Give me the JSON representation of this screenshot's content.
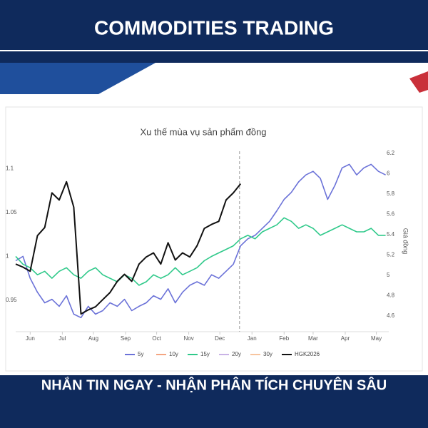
{
  "header": {
    "title": "COMMODITIES TRADING"
  },
  "footer": {
    "text": "NHẮN TIN NGAY - NHẬN PHÂN TÍCH CHUYÊN SÂU"
  },
  "chart_data": {
    "type": "line",
    "title": "Xu thế mùa vụ sản phẩm đồng",
    "y2_label": "Giá đồng",
    "x": [
      0,
      7,
      14,
      21,
      28,
      35,
      42,
      49,
      56,
      63,
      70,
      77,
      84,
      91,
      98,
      105,
      112,
      119,
      126,
      133,
      140,
      147,
      154,
      161,
      168,
      175,
      182,
      189,
      196,
      203,
      210,
      217,
      224,
      231,
      238,
      245,
      252,
      259,
      266,
      273,
      280,
      287,
      294,
      301,
      308,
      315,
      322,
      329,
      336,
      343,
      350,
      357
    ],
    "xlim": [
      0,
      360
    ],
    "xticks": [
      {
        "value": 14,
        "label": "Jun"
      },
      {
        "value": 45,
        "label": "Jul"
      },
      {
        "value": 75,
        "label": "Aug"
      },
      {
        "value": 106,
        "label": "Sep"
      },
      {
        "value": 136,
        "label": "Oct"
      },
      {
        "value": 167,
        "label": "Nov"
      },
      {
        "value": 197,
        "label": "Dec"
      },
      {
        "value": 228,
        "label": "Jan"
      },
      {
        "value": 259,
        "label": "Feb"
      },
      {
        "value": 287,
        "label": "Mar"
      },
      {
        "value": 318,
        "label": "Apr"
      },
      {
        "value": 348,
        "label": "May"
      }
    ],
    "ylim": [
      0.914,
      1.12
    ],
    "yticks": [
      0.95,
      1,
      1.05,
      1.1
    ],
    "y2lim": [
      4.445,
      6.22
    ],
    "y2ticks": [
      4.6,
      4.8,
      5,
      5.2,
      5.4,
      5.6,
      5.8,
      6,
      6.2
    ],
    "divider_x": 216,
    "series": [
      {
        "name": "5y",
        "color": "#6b72d8",
        "values": [
          0.995,
          1.0,
          0.975,
          0.959,
          0.947,
          0.951,
          0.943,
          0.955,
          0.934,
          0.93,
          0.943,
          0.934,
          0.938,
          0.947,
          0.943,
          0.951,
          0.938,
          0.943,
          0.947,
          0.955,
          0.951,
          0.963,
          0.947,
          0.959,
          0.967,
          0.971,
          0.967,
          0.979,
          0.975,
          0.983,
          0.991,
          1.012,
          1.02,
          1.024,
          1.032,
          1.04,
          1.052,
          1.065,
          1.073,
          1.085,
          1.093,
          1.097,
          1.089,
          1.065,
          1.081,
          1.101,
          1.105,
          1.093,
          1.101,
          1.105,
          1.097,
          1.093
        ]
      },
      {
        "name": "10y",
        "color": "#f4a582",
        "values": [
          null,
          null,
          null,
          null,
          null,
          null,
          null,
          null,
          null,
          null,
          null,
          null,
          null,
          null,
          null,
          null,
          null,
          null,
          null,
          null,
          null,
          null,
          null,
          null,
          null,
          null,
          null,
          null,
          null,
          null,
          null,
          null,
          null,
          null,
          null,
          null,
          null,
          null,
          null,
          null,
          null,
          null,
          null,
          null,
          null,
          null,
          null,
          null,
          null,
          null,
          null,
          null
        ]
      },
      {
        "name": "15y",
        "color": "#2fc98a",
        "values": [
          1.0,
          0.991,
          0.987,
          0.979,
          0.983,
          0.975,
          0.983,
          0.987,
          0.979,
          0.975,
          0.983,
          0.987,
          0.979,
          0.975,
          0.971,
          0.979,
          0.975,
          0.967,
          0.971,
          0.979,
          0.975,
          0.979,
          0.987,
          0.979,
          0.983,
          0.987,
          0.995,
          1.0,
          1.004,
          1.008,
          1.012,
          1.02,
          1.024,
          1.02,
          1.028,
          1.032,
          1.036,
          1.044,
          1.04,
          1.032,
          1.036,
          1.032,
          1.024,
          1.028,
          1.032,
          1.036,
          1.032,
          1.028,
          1.028,
          1.032,
          1.024,
          1.024
        ]
      },
      {
        "name": "20y",
        "color": "#c9b3e6",
        "values": [
          null,
          null,
          null,
          null,
          null,
          null,
          null,
          null,
          null,
          null,
          null,
          null,
          null,
          null,
          null,
          null,
          null,
          null,
          null,
          null,
          null,
          null,
          null,
          null,
          null,
          null,
          null,
          null,
          null,
          null,
          null,
          null,
          null,
          null,
          null,
          null,
          null,
          null,
          null,
          null,
          null,
          null,
          null,
          null,
          null,
          null,
          null,
          null,
          null,
          null,
          null,
          null
        ]
      },
      {
        "name": "30y",
        "color": "#f7c59f",
        "values": [
          null,
          null,
          null,
          null,
          null,
          null,
          null,
          null,
          null,
          null,
          null,
          null,
          null,
          null,
          null,
          null,
          null,
          null,
          null,
          null,
          null,
          null,
          null,
          null,
          null,
          null,
          null,
          null,
          null,
          null,
          null,
          null,
          null,
          null,
          null,
          null,
          null,
          null,
          null,
          null,
          null,
          null,
          null,
          null,
          null,
          null,
          null,
          null,
          null,
          null,
          null,
          null
        ]
      },
      {
        "name": "HGK2026",
        "color": "#111111",
        "axis": "y2",
        "values": [
          5.11,
          5.08,
          5.04,
          5.39,
          5.47,
          5.81,
          5.74,
          5.92,
          5.67,
          4.62,
          4.66,
          4.69,
          4.76,
          4.83,
          4.94,
          5.01,
          4.94,
          5.11,
          5.18,
          5.22,
          5.11,
          5.32,
          5.15,
          5.22,
          5.18,
          5.29,
          5.46,
          5.5,
          5.53,
          5.74,
          5.81,
          5.9,
          null,
          null,
          null,
          null,
          null,
          null,
          null,
          null,
          null,
          null,
          null,
          null,
          null,
          null,
          null,
          null,
          null,
          null,
          null,
          null
        ]
      }
    ]
  }
}
